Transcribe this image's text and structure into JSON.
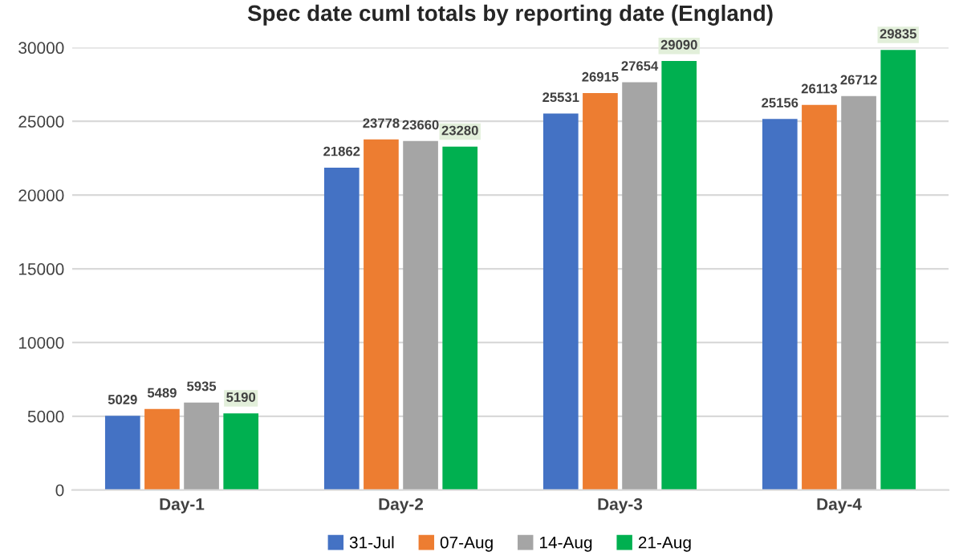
{
  "chart_data": {
    "type": "bar",
    "title": "Spec date cuml totals by reporting date (England)",
    "categories": [
      "Day-1",
      "Day-2",
      "Day-3",
      "Day-4"
    ],
    "series": [
      {
        "name": "31-Jul",
        "color": "#4472c4",
        "values": [
          5029,
          21862,
          25531,
          25156
        ]
      },
      {
        "name": "07-Aug",
        "color": "#ed7d31",
        "values": [
          5489,
          23778,
          26915,
          26113
        ]
      },
      {
        "name": "14-Aug",
        "color": "#a5a5a5",
        "values": [
          5935,
          23660,
          27654,
          26712
        ]
      },
      {
        "name": "21-Aug",
        "color": "#00b050",
        "values": [
          5190,
          23280,
          29090,
          29835
        ]
      }
    ],
    "ylim": [
      0,
      30000
    ],
    "yticks": [
      0,
      5000,
      10000,
      15000,
      20000,
      25000,
      30000
    ],
    "grid": "y",
    "legend": "bottom",
    "data_labels": true
  }
}
